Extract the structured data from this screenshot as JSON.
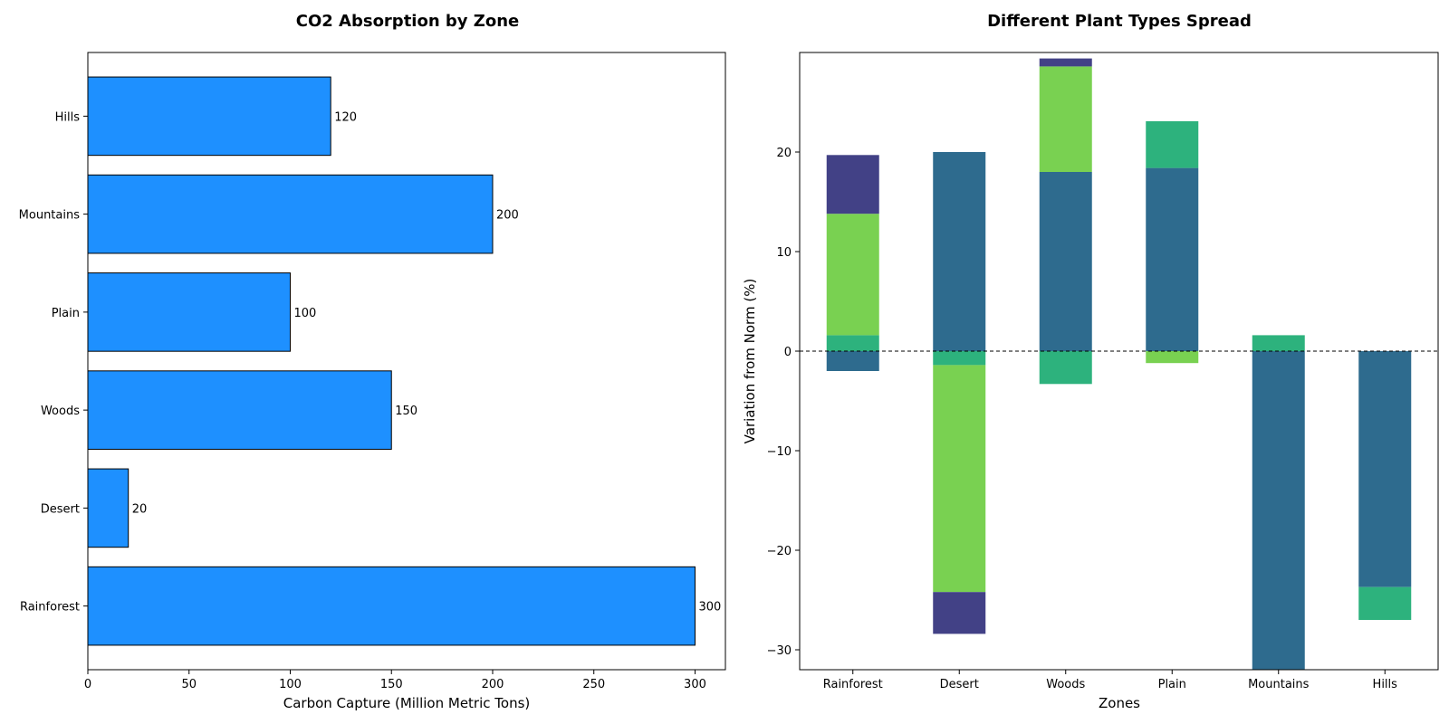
{
  "colors": {
    "bar_fill": "#1e90ff",
    "bar_edge": "#000000",
    "seg_dark": "#2e6b8e",
    "seg_teal": "#2db27d",
    "seg_light": "#79d151",
    "seg_navy": "#424186"
  },
  "chart_data": [
    {
      "type": "bar",
      "orientation": "horizontal",
      "title": "CO2 Absorption by Zone",
      "xlabel": "Carbon Capture (Million Metric Tons)",
      "ylabel": "",
      "categories": [
        "Rainforest",
        "Desert",
        "Woods",
        "Plain",
        "Mountains",
        "Hills"
      ],
      "values": [
        300,
        20,
        150,
        100,
        200,
        120
      ],
      "value_labels": [
        "300",
        "20",
        "150",
        "100",
        "200",
        "120"
      ],
      "xlim": [
        0,
        315
      ],
      "xticks": [
        0,
        50,
        100,
        150,
        200,
        250,
        300
      ],
      "xtick_labels": [
        "0",
        "50",
        "100",
        "150",
        "200",
        "250",
        "300"
      ],
      "grid": false,
      "legend": "none"
    },
    {
      "type": "bar",
      "orientation": "vertical",
      "stacked": "diverging",
      "title": "Different Plant Types Spread",
      "xlabel": "Zones",
      "ylabel": "Variation from Norm (%)",
      "categories": [
        "Rainforest",
        "Desert",
        "Woods",
        "Plain",
        "Mountains",
        "Hills"
      ],
      "ylim": [
        -32,
        30
      ],
      "yticks": [
        -30,
        -20,
        -10,
        0,
        10,
        20
      ],
      "ytick_labels": [
        "−30",
        "−20",
        "−10",
        "0",
        "10",
        "20"
      ],
      "reference_line": 0,
      "grid": false,
      "legend": "none",
      "series": [
        {
          "color_key": "seg_dark",
          "values": [
            -2,
            20,
            18,
            18.4,
            -32,
            -23.7
          ]
        },
        {
          "color_key": "seg_teal",
          "values": [
            1.6,
            -1.4,
            -3.3,
            4.7,
            1.6,
            -3.3
          ]
        },
        {
          "color_key": "seg_light",
          "values": [
            12.2,
            -22.8,
            10.6,
            -1.2,
            0,
            0
          ]
        },
        {
          "color_key": "seg_navy",
          "values": [
            5.9,
            -4.2,
            0.8,
            0,
            0,
            0
          ]
        }
      ]
    }
  ]
}
